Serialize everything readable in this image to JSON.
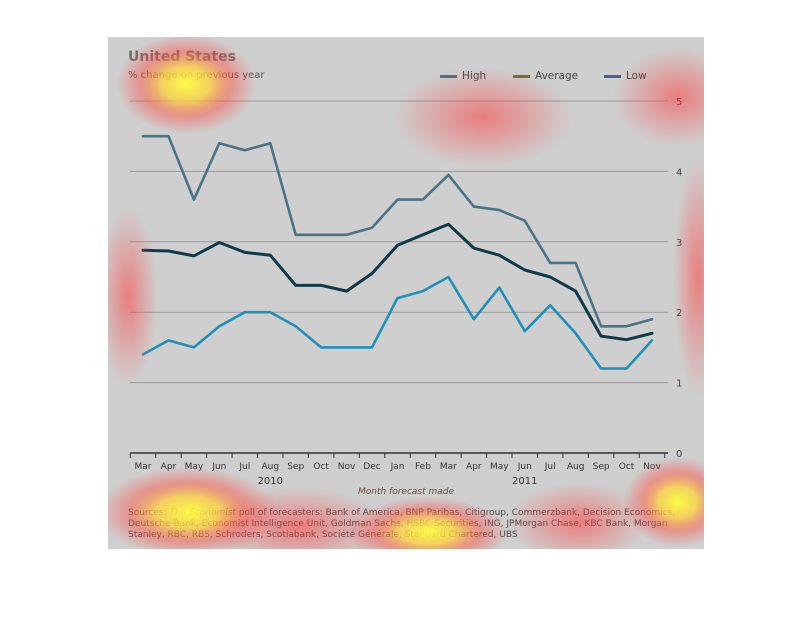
{
  "colors": {
    "high": "#4a7385",
    "average": "#0f3a4a",
    "low": "#2090b7",
    "background": "#cfcfcf",
    "grid": "#9a9a9a",
    "axis": "#333333"
  },
  "chart_data": {
    "type": "line",
    "title": "United States",
    "subtitle": "% change on previous year",
    "xlabel": "Month forecast made",
    "categories": [
      "Mar",
      "Apr",
      "May",
      "Jun",
      "Jul",
      "Aug",
      "Sep",
      "Oct",
      "Nov",
      "Dec",
      "Jan",
      "Feb",
      "Mar",
      "Apr",
      "May",
      "Jun",
      "Jul",
      "Aug",
      "Sep",
      "Oct",
      "Nov"
    ],
    "year_labels": [
      {
        "label": "2010",
        "center": 5
      },
      {
        "label": "2011",
        "center": 15
      }
    ],
    "ylim": [
      0,
      5
    ],
    "yticks": [
      "0",
      "1",
      "2",
      "3",
      "4",
      "5"
    ],
    "grid": true,
    "legend_position": "top-right",
    "series": [
      {
        "name": "High",
        "color_key": "high",
        "values": [
          4.5,
          4.5,
          3.6,
          4.4,
          4.3,
          4.4,
          3.1,
          3.1,
          3.1,
          3.2,
          3.6,
          3.6,
          3.95,
          3.5,
          3.45,
          3.3,
          2.7,
          2.7,
          1.8,
          1.8,
          1.9
        ]
      },
      {
        "name": "Average",
        "color_key": "average",
        "values": [
          2.88,
          2.87,
          2.8,
          2.99,
          2.85,
          2.81,
          2.38,
          2.38,
          2.3,
          2.55,
          2.95,
          3.1,
          3.25,
          2.91,
          2.81,
          2.6,
          2.5,
          2.3,
          1.66,
          1.61,
          1.7
        ]
      },
      {
        "name": "Low",
        "color_key": "low",
        "values": [
          1.4,
          1.6,
          1.5,
          1.8,
          2.0,
          2.0,
          1.8,
          1.5,
          1.5,
          1.5,
          2.2,
          2.3,
          2.5,
          1.9,
          2.35,
          1.73,
          2.1,
          1.7,
          1.2,
          1.2,
          1.6
        ]
      }
    ]
  },
  "sources": {
    "prefix": "Sources: ",
    "publication": "The Economist",
    "text": " poll of forecasters: Bank of America, BNP Paribas, Citigroup, Commerzbank, Decision Economics, Deutsche Bank, Economist Intelligence Unit, Goldman Sachs, HSBC Securities, ING, JPMorgan Chase, KBC Bank, Morgan Stanley, RBC, RBS, Schroders, Scotiabank, Société Générale, Standard Chartered, UBS"
  }
}
